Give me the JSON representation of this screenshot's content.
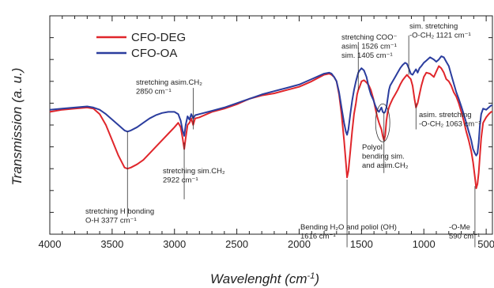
{
  "chart_data": {
    "type": "line",
    "title": "",
    "xlabel": "Wavelenght (cm",
    "xlabel_sup": "-1",
    "xlabel_end": ")",
    "ylabel": "Transmission (a. u.)",
    "xlim": [
      4000,
      450
    ],
    "ylim": [
      0,
      100
    ],
    "x_reversed": true,
    "x_ticks": [
      4000,
      3500,
      3000,
      2500,
      2000,
      1500,
      1000,
      500
    ],
    "grid": false,
    "legend_position": "top-left",
    "series": [
      {
        "name": "CFO-DEG",
        "color": "#e0262b",
        "x": [
          4000,
          3900,
          3800,
          3700,
          3650,
          3600,
          3550,
          3500,
          3450,
          3400,
          3377,
          3350,
          3300,
          3250,
          3200,
          3150,
          3100,
          3050,
          3000,
          2970,
          2950,
          2935,
          2922,
          2910,
          2895,
          2880,
          2865,
          2850,
          2835,
          2800,
          2700,
          2600,
          2500,
          2400,
          2300,
          2200,
          2100,
          2000,
          1900,
          1800,
          1760,
          1740,
          1720,
          1700,
          1680,
          1660,
          1640,
          1625,
          1616,
          1605,
          1590,
          1575,
          1560,
          1545,
          1535,
          1526,
          1515,
          1500,
          1480,
          1460,
          1440,
          1425,
          1405,
          1390,
          1375,
          1360,
          1350,
          1340,
          1330,
          1320,
          1310,
          1300,
          1290,
          1280,
          1270,
          1250,
          1230,
          1210,
          1190,
          1170,
          1150,
          1135,
          1121,
          1105,
          1090,
          1075,
          1063,
          1050,
          1035,
          1020,
          1000,
          980,
          950,
          920,
          900,
          880,
          860,
          840,
          820,
          800,
          780,
          760,
          740,
          720,
          700,
          680,
          660,
          640,
          620,
          605,
          590,
          580,
          570,
          560,
          550,
          540,
          525,
          500,
          480,
          460,
          450
        ],
        "y": [
          56,
          57,
          57.5,
          58,
          57.5,
          55,
          50,
          43,
          36,
          30.5,
          30,
          30.5,
          32,
          34,
          37,
          40,
          43,
          46,
          49,
          51,
          49,
          44,
          39,
          44,
          50,
          51,
          53,
          50,
          53,
          53.5,
          56,
          57.5,
          59.5,
          62,
          63.5,
          64.5,
          66,
          67.5,
          70,
          73,
          73.5,
          73,
          72,
          70,
          64,
          55,
          43,
          33,
          26,
          29,
          38,
          47,
          55,
          60,
          64,
          66,
          67.5,
          70,
          70.5,
          69.5,
          68,
          66,
          62,
          58,
          54,
          51,
          49.5,
          48,
          45,
          43,
          45,
          52,
          56,
          58,
          59.5,
          62,
          64,
          66,
          68.5,
          70.5,
          72,
          73,
          72,
          71,
          68,
          62,
          58,
          60,
          64,
          68,
          72,
          74,
          73.5,
          72,
          74.5,
          77,
          76,
          74,
          71,
          70,
          68,
          65,
          63,
          60,
          56,
          52,
          47,
          43,
          38,
          33,
          26,
          21,
          23,
          28,
          36,
          44,
          51,
          53.5,
          55,
          56,
          56
        ]
      },
      {
        "name": "CFO-OA",
        "color": "#2b3d9e",
        "x": [
          4000,
          3900,
          3800,
          3700,
          3650,
          3600,
          3550,
          3500,
          3450,
          3400,
          3377,
          3350,
          3300,
          3250,
          3200,
          3150,
          3100,
          3050,
          3000,
          2970,
          2950,
          2935,
          2922,
          2910,
          2895,
          2880,
          2865,
          2850,
          2835,
          2800,
          2700,
          2600,
          2500,
          2400,
          2300,
          2200,
          2100,
          2000,
          1900,
          1800,
          1760,
          1740,
          1720,
          1700,
          1680,
          1660,
          1640,
          1625,
          1616,
          1605,
          1590,
          1575,
          1560,
          1545,
          1535,
          1526,
          1515,
          1500,
          1480,
          1460,
          1440,
          1425,
          1405,
          1390,
          1375,
          1360,
          1350,
          1340,
          1330,
          1320,
          1310,
          1300,
          1290,
          1280,
          1270,
          1250,
          1230,
          1210,
          1190,
          1170,
          1150,
          1135,
          1121,
          1105,
          1090,
          1075,
          1063,
          1050,
          1035,
          1020,
          1000,
          980,
          950,
          920,
          900,
          880,
          860,
          840,
          820,
          800,
          780,
          760,
          740,
          720,
          700,
          680,
          660,
          640,
          620,
          605,
          590,
          580,
          570,
          560,
          550,
          540,
          525,
          500,
          480,
          460,
          450
        ],
        "y": [
          57,
          57.5,
          58,
          58.5,
          58,
          57,
          55,
          52.5,
          50,
          47.5,
          47,
          47.5,
          49,
          51,
          53,
          54.5,
          55.5,
          56,
          56,
          55,
          52,
          47.5,
          45,
          50,
          54,
          52.5,
          55,
          53,
          54.5,
          55,
          56.5,
          58,
          60,
          62,
          64,
          65.5,
          67,
          68.5,
          71,
          73.5,
          74,
          73.5,
          72,
          70,
          65,
          58,
          51,
          47,
          45.5,
          48,
          55,
          61,
          66,
          70,
          72,
          74,
          75,
          76,
          75,
          72,
          67,
          64,
          61.5,
          59,
          57,
          56,
          57,
          58,
          56,
          55.5,
          56,
          58,
          62,
          66,
          68,
          70,
          72,
          74,
          76,
          77.5,
          78.5,
          78,
          76,
          73.5,
          73,
          74.5,
          75.5,
          74,
          76,
          77,
          78.5,
          79.5,
          81,
          80,
          79,
          80,
          81.5,
          81,
          79,
          77,
          73,
          69,
          65,
          62,
          58.5,
          55,
          51,
          47,
          43,
          39,
          37,
          36,
          37,
          42,
          50,
          55,
          57.5,
          57,
          58,
          59,
          59
        ]
      }
    ],
    "annotations": [
      {
        "id": "ch2-asym",
        "lines": [
          "stretching asim.CH₂",
          "2850 cm⁻¹"
        ],
        "x": 2850,
        "y0": 48,
        "y1": 67
      },
      {
        "id": "ch2-sym",
        "lines": [
          "stretching sim.CH₂",
          "2922 cm⁻¹"
        ],
        "x": 2922,
        "y0": 42,
        "y1": 16
      },
      {
        "id": "oh-stretch",
        "lines": [
          "stretching H bonding",
          "O-H 3377 cm⁻¹"
        ],
        "x": 3377,
        "y0": 47,
        "y1": 8
      },
      {
        "id": "oh-bend",
        "lines": [
          "Bending H₂O and poliol (OH)",
          "1616 cm⁻¹"
        ],
        "x": 1616,
        "y0": 25,
        "y1": -6
      },
      {
        "id": "coo",
        "lines": [
          "stretching COO⁻",
          "asim. 1526 cm⁻¹",
          "sim. 1405 cm⁻¹"
        ],
        "x": 1526,
        "y0": 66,
        "y1": 88
      },
      {
        "id": "polyol",
        "lines": [
          "Polyol",
          "bending sim.",
          "and asim.CH₂"
        ],
        "x": 1320,
        "y0": 56,
        "y1": 28
      },
      {
        "id": "och2-sym",
        "lines": [
          "sim. stretching",
          "-O-CH₂ 1121 cm⁻¹"
        ],
        "x": 1121,
        "y0": 73,
        "y1": 91
      },
      {
        "id": "och2-asym",
        "lines": [
          "asim. stretching",
          "-O-CH₂ 1063 cm⁻¹"
        ],
        "x": 1063,
        "y0": 60,
        "y1": 48
      },
      {
        "id": "ome",
        "lines": [
          "-O-Me",
          "590 cm⁻¹"
        ],
        "x": 590,
        "y0": 22,
        "y1": -6
      }
    ]
  }
}
